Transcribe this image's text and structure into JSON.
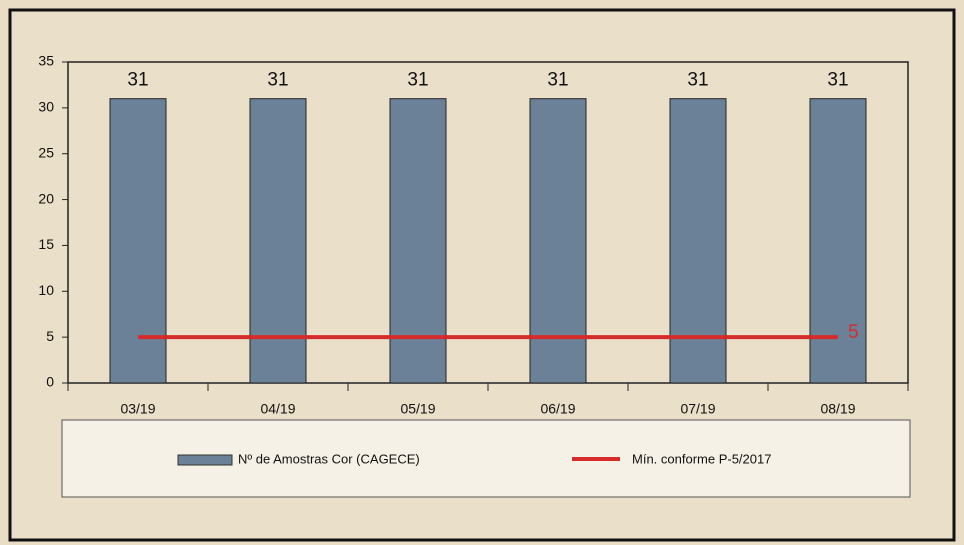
{
  "chart_data": {
    "type": "bar",
    "categories": [
      "03/19",
      "04/19",
      "05/19",
      "06/19",
      "07/19",
      "08/19"
    ],
    "series": [
      {
        "name": "Nº de Amostras Cor (CAGECE)",
        "type": "bar",
        "color": "#6b8197",
        "values": [
          31,
          31,
          31,
          31,
          31,
          31
        ]
      },
      {
        "name": "Mín. conforme P-5/2017",
        "type": "line",
        "color": "#d62b2b",
        "values": [
          5,
          5,
          5,
          5,
          5,
          5
        ]
      }
    ],
    "ylim": [
      0,
      35
    ],
    "yticks": [
      0,
      5,
      10,
      15,
      20,
      25,
      30,
      35
    ],
    "legend": "bottom"
  }
}
